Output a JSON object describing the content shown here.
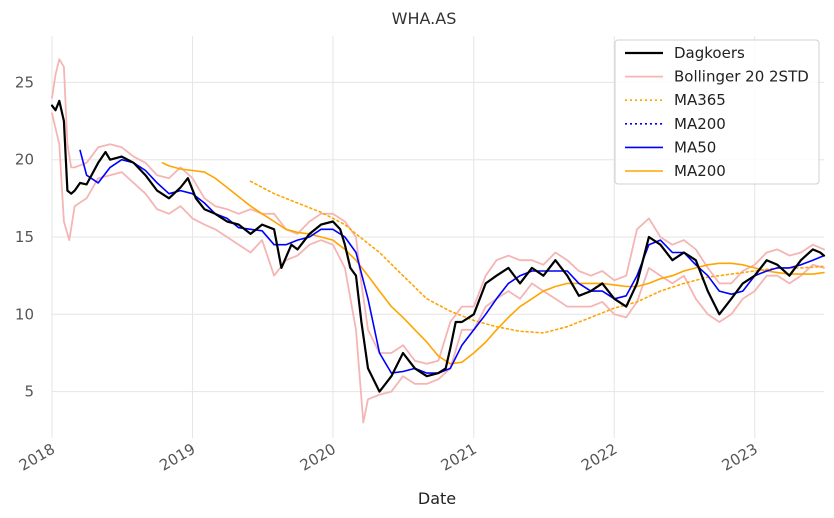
{
  "chart_data": {
    "type": "line",
    "title": "WHA.AS",
    "xlabel": "Date",
    "ylabel": "",
    "xlim": [
      "2018-01-01",
      "2023-06-30"
    ],
    "ylim": [
      2,
      28
    ],
    "yticks": [
      5,
      10,
      15,
      20,
      25
    ],
    "xticks": [
      "2018",
      "2019",
      "2020",
      "2021",
      "2022",
      "2023"
    ],
    "grid": true,
    "legend_position": "top-right",
    "series": [
      {
        "name": "Dagkoers",
        "color": "#000000",
        "style": "solid",
        "width": 2.2,
        "x": [
          "2018-01-01",
          "2018-01-10",
          "2018-01-20",
          "2018-02-01",
          "2018-02-10",
          "2018-02-20",
          "2018-03-01",
          "2018-03-15",
          "2018-04-01",
          "2018-05-01",
          "2018-05-20",
          "2018-06-01",
          "2018-07-01",
          "2018-08-01",
          "2018-09-01",
          "2018-10-01",
          "2018-11-01",
          "2018-12-01",
          "2018-12-20",
          "2019-01-10",
          "2019-02-01",
          "2019-03-01",
          "2019-04-01",
          "2019-05-01",
          "2019-06-01",
          "2019-07-01",
          "2019-08-01",
          "2019-08-20",
          "2019-09-15",
          "2019-10-01",
          "2019-11-01",
          "2019-12-01",
          "2020-01-01",
          "2020-01-20",
          "2020-02-01",
          "2020-02-15",
          "2020-03-01",
          "2020-03-15",
          "2020-04-01",
          "2020-05-01",
          "2020-06-01",
          "2020-07-01",
          "2020-08-01",
          "2020-09-01",
          "2020-10-01",
          "2020-10-20",
          "2020-11-01",
          "2020-11-15",
          "2020-12-01",
          "2021-01-01",
          "2021-02-01",
          "2021-03-01",
          "2021-04-01",
          "2021-05-01",
          "2021-06-01",
          "2021-07-01",
          "2021-08-01",
          "2021-09-01",
          "2021-10-01",
          "2021-11-01",
          "2021-12-01",
          "2022-01-01",
          "2022-02-01",
          "2022-03-01",
          "2022-04-01",
          "2022-05-01",
          "2022-06-01",
          "2022-07-01",
          "2022-08-01",
          "2022-09-01",
          "2022-10-01",
          "2022-11-01",
          "2022-12-01",
          "2023-01-01",
          "2023-02-01",
          "2023-03-01",
          "2023-04-01",
          "2023-05-01",
          "2023-06-01",
          "2023-06-20",
          "2023-06-30"
        ],
        "y": [
          23.5,
          23.2,
          23.8,
          22.5,
          18.0,
          17.8,
          18.0,
          18.5,
          18.4,
          19.8,
          20.5,
          20.0,
          20.2,
          19.8,
          19.0,
          18.0,
          17.5,
          18.2,
          18.8,
          17.5,
          16.8,
          16.5,
          16.0,
          15.8,
          15.2,
          15.8,
          15.5,
          13.0,
          14.5,
          14.2,
          15.2,
          15.8,
          16.0,
          15.5,
          14.5,
          13.0,
          12.5,
          9.5,
          6.5,
          5.0,
          6.0,
          7.5,
          6.5,
          6.0,
          6.2,
          6.5,
          7.8,
          9.5,
          9.5,
          10.0,
          12.0,
          12.5,
          13.0,
          12.0,
          13.0,
          12.5,
          13.5,
          12.5,
          11.2,
          11.5,
          12.0,
          11.0,
          10.5,
          12.0,
          15.0,
          14.5,
          13.5,
          14.0,
          13.5,
          11.5,
          10.0,
          11.0,
          12.0,
          12.5,
          13.5,
          13.2,
          12.5,
          13.5,
          14.2,
          14.0,
          13.8
        ]
      },
      {
        "name": "Bollinger 20 2STD",
        "color": "#f5b5b5",
        "style": "solid",
        "width": 1.8,
        "upper": {
          "x": [
            "2018-01-01",
            "2018-01-10",
            "2018-01-20",
            "2018-02-01",
            "2018-02-10",
            "2018-02-20",
            "2018-03-01",
            "2018-04-01",
            "2018-05-01",
            "2018-06-01",
            "2018-07-01",
            "2018-08-01",
            "2018-09-01",
            "2018-10-01",
            "2018-11-01",
            "2018-12-01",
            "2019-01-01",
            "2019-02-01",
            "2019-03-01",
            "2019-04-01",
            "2019-05-01",
            "2019-06-01",
            "2019-07-01",
            "2019-08-01",
            "2019-09-01",
            "2019-10-01",
            "2019-11-01",
            "2019-12-01",
            "2020-01-01",
            "2020-02-01",
            "2020-03-01",
            "2020-03-15",
            "2020-04-01",
            "2020-05-01",
            "2020-06-01",
            "2020-07-01",
            "2020-08-01",
            "2020-09-01",
            "2020-10-01",
            "2020-11-01",
            "2020-12-01",
            "2021-01-01",
            "2021-02-01",
            "2021-03-01",
            "2021-04-01",
            "2021-05-01",
            "2021-06-01",
            "2021-07-01",
            "2021-08-01",
            "2021-09-01",
            "2021-10-01",
            "2021-11-01",
            "2021-12-01",
            "2022-01-01",
            "2022-02-01",
            "2022-03-01",
            "2022-04-01",
            "2022-05-01",
            "2022-06-01",
            "2022-07-01",
            "2022-08-01",
            "2022-09-01",
            "2022-10-01",
            "2022-11-01",
            "2022-12-01",
            "2023-01-01",
            "2023-02-01",
            "2023-03-01",
            "2023-04-01",
            "2023-05-01",
            "2023-06-01",
            "2023-06-30"
          ],
          "y": [
            24.0,
            25.5,
            26.5,
            26.0,
            21.0,
            19.5,
            19.5,
            19.8,
            20.8,
            21.0,
            20.8,
            20.2,
            19.8,
            19.0,
            18.8,
            19.5,
            18.8,
            17.5,
            17.0,
            16.8,
            16.5,
            16.8,
            16.5,
            16.5,
            15.5,
            15.2,
            16.0,
            16.5,
            16.5,
            16.0,
            15.0,
            12.0,
            9.0,
            7.5,
            7.5,
            8.0,
            7.0,
            6.8,
            7.0,
            9.5,
            10.5,
            10.5,
            12.5,
            13.5,
            13.8,
            13.5,
            13.5,
            13.2,
            14.0,
            13.5,
            12.8,
            12.5,
            12.8,
            12.2,
            12.5,
            15.5,
            16.2,
            15.0,
            14.5,
            14.8,
            14.2,
            13.0,
            12.0,
            12.0,
            12.8,
            13.2,
            14.0,
            14.2,
            13.8,
            14.0,
            14.5,
            14.2
          ]
        },
        "lower": {
          "x": [
            "2018-01-01",
            "2018-01-20",
            "2018-02-01",
            "2018-02-15",
            "2018-03-01",
            "2018-04-01",
            "2018-05-01",
            "2018-06-01",
            "2018-07-01",
            "2018-08-01",
            "2018-09-01",
            "2018-10-01",
            "2018-11-01",
            "2018-12-01",
            "2019-01-01",
            "2019-02-01",
            "2019-03-01",
            "2019-04-01",
            "2019-05-01",
            "2019-06-01",
            "2019-07-01",
            "2019-08-01",
            "2019-09-01",
            "2019-10-01",
            "2019-11-01",
            "2019-12-01",
            "2020-01-01",
            "2020-02-01",
            "2020-03-01",
            "2020-03-20",
            "2020-04-01",
            "2020-05-01",
            "2020-06-01",
            "2020-07-01",
            "2020-08-01",
            "2020-09-01",
            "2020-10-01",
            "2020-11-01",
            "2020-12-01",
            "2021-01-01",
            "2021-02-01",
            "2021-03-01",
            "2021-04-01",
            "2021-05-01",
            "2021-06-01",
            "2021-07-01",
            "2021-08-01",
            "2021-09-01",
            "2021-10-01",
            "2021-11-01",
            "2021-12-01",
            "2022-01-01",
            "2022-02-01",
            "2022-03-01",
            "2022-04-01",
            "2022-05-01",
            "2022-06-01",
            "2022-07-01",
            "2022-08-01",
            "2022-09-01",
            "2022-10-01",
            "2022-11-01",
            "2022-12-01",
            "2023-01-01",
            "2023-02-01",
            "2023-03-01",
            "2023-04-01",
            "2023-05-01",
            "2023-06-01",
            "2023-06-30"
          ],
          "y": [
            23.0,
            21.0,
            16.0,
            14.8,
            17.0,
            17.5,
            18.8,
            19.0,
            19.2,
            18.5,
            17.8,
            16.8,
            16.5,
            17.0,
            16.2,
            15.8,
            15.5,
            15.0,
            14.5,
            14.0,
            14.8,
            12.5,
            13.5,
            13.8,
            14.5,
            14.8,
            14.5,
            13.0,
            9.0,
            3.0,
            4.5,
            4.8,
            5.0,
            6.0,
            5.5,
            5.5,
            5.8,
            6.5,
            9.0,
            9.0,
            10.5,
            11.0,
            11.5,
            11.0,
            12.0,
            11.5,
            11.0,
            10.5,
            10.5,
            10.5,
            10.8,
            10.0,
            9.8,
            10.8,
            13.0,
            12.5,
            12.0,
            12.5,
            11.0,
            10.0,
            9.5,
            10.0,
            11.0,
            11.5,
            12.5,
            12.5,
            12.0,
            12.5,
            13.2,
            13.0
          ]
        }
      },
      {
        "name": "MA365",
        "color": "#ffa500",
        "style": "dotted",
        "width": 1.6,
        "x": [
          "2019-06-01",
          "2019-08-01",
          "2019-10-01",
          "2019-12-01",
          "2020-01-01",
          "2020-02-01",
          "2020-03-01",
          "2020-05-01",
          "2020-07-01",
          "2020-09-01",
          "2020-11-01",
          "2021-01-01",
          "2021-03-01",
          "2021-05-01",
          "2021-07-01",
          "2021-09-01",
          "2021-11-01",
          "2022-01-01",
          "2022-03-01",
          "2022-05-01",
          "2022-07-01",
          "2022-09-01",
          "2022-11-01",
          "2023-01-01",
          "2023-03-01",
          "2023-05-01",
          "2023-06-30"
        ],
        "y": [
          18.6,
          17.8,
          17.2,
          16.6,
          16.2,
          15.8,
          15.2,
          14.0,
          12.5,
          11.0,
          10.2,
          9.6,
          9.2,
          8.9,
          8.8,
          9.2,
          9.8,
          10.4,
          10.8,
          11.5,
          12.0,
          12.4,
          12.6,
          12.8,
          13.0,
          13.0,
          13.1
        ]
      },
      {
        "name": "MA200",
        "color": "#0000ff",
        "style": "dotted",
        "width": 1.6,
        "x": [],
        "y": []
      },
      {
        "name": "MA50",
        "color": "#0000ff",
        "style": "solid",
        "width": 1.6,
        "x": [
          "2018-03-15",
          "2018-04-01",
          "2018-05-01",
          "2018-06-01",
          "2018-07-01",
          "2018-08-01",
          "2018-09-01",
          "2018-10-01",
          "2018-11-01",
          "2018-12-01",
          "2019-01-01",
          "2019-02-01",
          "2019-03-01",
          "2019-04-01",
          "2019-05-01",
          "2019-06-01",
          "2019-07-01",
          "2019-08-01",
          "2019-09-01",
          "2019-10-01",
          "2019-11-01",
          "2019-12-01",
          "2020-01-01",
          "2020-02-01",
          "2020-03-01",
          "2020-04-01",
          "2020-05-01",
          "2020-06-01",
          "2020-07-01",
          "2020-08-01",
          "2020-09-01",
          "2020-10-01",
          "2020-11-01",
          "2020-12-01",
          "2021-01-01",
          "2021-02-01",
          "2021-03-01",
          "2021-04-01",
          "2021-05-01",
          "2021-06-01",
          "2021-07-01",
          "2021-08-01",
          "2021-09-01",
          "2021-10-01",
          "2021-11-01",
          "2021-12-01",
          "2022-01-01",
          "2022-02-01",
          "2022-03-01",
          "2022-04-01",
          "2022-05-01",
          "2022-06-01",
          "2022-07-01",
          "2022-08-01",
          "2022-09-01",
          "2022-10-01",
          "2022-11-01",
          "2022-12-01",
          "2023-01-01",
          "2023-02-01",
          "2023-03-01",
          "2023-04-01",
          "2023-05-01",
          "2023-06-01",
          "2023-06-30"
        ],
        "y": [
          20.6,
          19.0,
          18.5,
          19.5,
          20.0,
          19.8,
          19.3,
          18.5,
          17.8,
          18.0,
          17.8,
          17.2,
          16.5,
          16.2,
          15.6,
          15.5,
          15.4,
          14.5,
          14.5,
          14.8,
          15.0,
          15.5,
          15.5,
          15.0,
          14.0,
          11.0,
          7.5,
          6.2,
          6.3,
          6.5,
          6.2,
          6.2,
          6.5,
          8.0,
          9.0,
          10.0,
          11.0,
          12.0,
          12.5,
          12.8,
          12.8,
          12.8,
          12.8,
          12.0,
          11.5,
          11.5,
          11.0,
          11.2,
          12.5,
          14.5,
          14.8,
          14.0,
          14.0,
          13.2,
          12.5,
          11.5,
          11.3,
          11.5,
          12.5,
          12.8,
          13.0,
          13.0,
          13.2,
          13.5,
          13.8
        ]
      },
      {
        "name": "MA200",
        "color": "#ffa500",
        "style": "solid",
        "width": 1.6,
        "x": [
          "2018-10-15",
          "2018-11-01",
          "2018-12-01",
          "2019-01-01",
          "2019-02-01",
          "2019-03-01",
          "2019-04-01",
          "2019-05-01",
          "2019-06-01",
          "2019-07-01",
          "2019-08-01",
          "2019-09-01",
          "2019-10-01",
          "2019-11-01",
          "2019-12-01",
          "2020-01-01",
          "2020-02-01",
          "2020-03-01",
          "2020-04-01",
          "2020-05-01",
          "2020-06-01",
          "2020-07-01",
          "2020-08-01",
          "2020-09-01",
          "2020-10-01",
          "2020-11-01",
          "2020-12-01",
          "2021-01-01",
          "2021-02-01",
          "2021-03-01",
          "2021-04-01",
          "2021-05-01",
          "2021-06-01",
          "2021-07-01",
          "2021-08-01",
          "2021-09-01",
          "2021-10-01",
          "2021-11-01",
          "2021-12-01",
          "2022-01-01",
          "2022-02-01",
          "2022-03-01",
          "2022-04-01",
          "2022-05-01",
          "2022-06-01",
          "2022-07-01",
          "2022-08-01",
          "2022-09-01",
          "2022-10-01",
          "2022-11-01",
          "2022-12-01",
          "2023-01-01",
          "2023-02-01",
          "2023-03-01",
          "2023-04-01",
          "2023-05-01",
          "2023-06-01",
          "2023-06-30"
        ],
        "y": [
          19.8,
          19.6,
          19.4,
          19.3,
          19.2,
          18.8,
          18.2,
          17.6,
          17.0,
          16.5,
          16.0,
          15.5,
          15.3,
          15.2,
          15.0,
          14.8,
          14.2,
          13.5,
          12.5,
          11.5,
          10.5,
          9.8,
          9.0,
          8.2,
          7.3,
          6.8,
          6.9,
          7.5,
          8.2,
          9.0,
          9.8,
          10.5,
          11.0,
          11.5,
          11.8,
          12.0,
          12.0,
          12.0,
          12.0,
          11.9,
          11.8,
          11.8,
          12.0,
          12.3,
          12.5,
          12.8,
          13.0,
          13.2,
          13.3,
          13.3,
          13.2,
          13.0,
          12.8,
          12.7,
          12.6,
          12.6,
          12.6,
          12.7
        ]
      }
    ]
  }
}
